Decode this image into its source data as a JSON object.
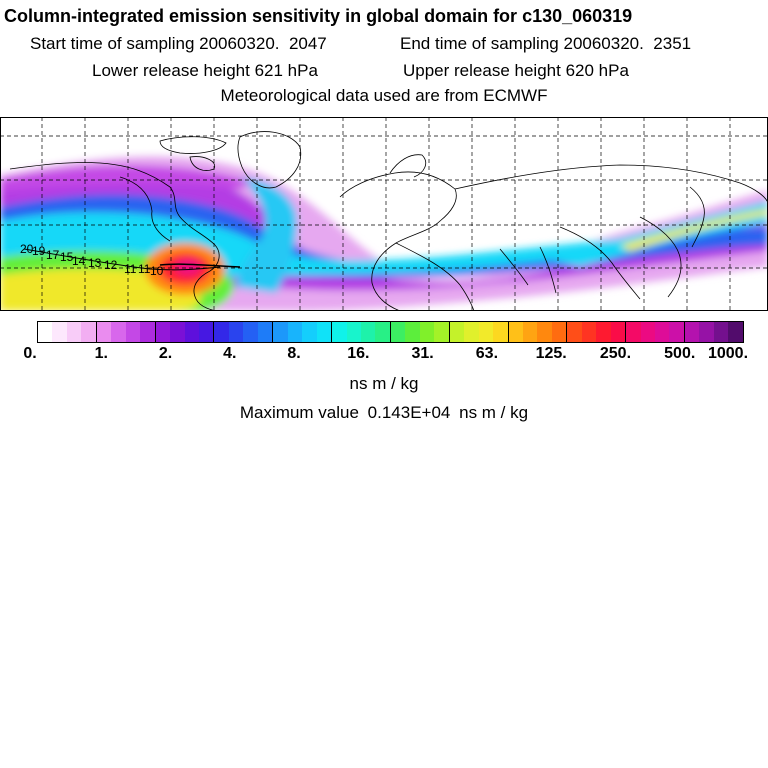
{
  "header": {
    "title": "Column-integrated emission sensitivity in global domain for c130_060319",
    "start_label": "Start time of sampling",
    "start_value": "20060320.  2047",
    "end_label": "End time of sampling",
    "end_value": "20060320.  2351",
    "lower_label": "Lower release height",
    "lower_value": "621 hPa",
    "upper_label": "Upper release height",
    "upper_value": "620 hPa",
    "met_text": "Meteorological data used are from ECMWF"
  },
  "map": {
    "track_labels": [
      "20",
      "19",
      "17",
      "15",
      "14",
      "13",
      "12",
      "11",
      "11",
      "10"
    ]
  },
  "colorbar": {
    "ticks": [
      "0.",
      "1.",
      "2.",
      "4.",
      "8.",
      "16.",
      "31.",
      "63.",
      "125.",
      "250.",
      "500.",
      "1000."
    ],
    "colors": [
      "#ffffff",
      "#fde8fd",
      "#f8ccf8",
      "#f2aef2",
      "#ea8cef",
      "#d867ec",
      "#c448e6",
      "#ad2cde",
      "#9418d8",
      "#7b10d6",
      "#5e10dc",
      "#4618e2",
      "#3328e8",
      "#2a44ee",
      "#2460f4",
      "#1e7cf8",
      "#1c98fa",
      "#18b4fc",
      "#14cefc",
      "#10e2f8",
      "#10f2ea",
      "#18f4cc",
      "#1ef2aa",
      "#28f086",
      "#3cee62",
      "#5cee3c",
      "#80f02a",
      "#a4f228",
      "#c4f22a",
      "#e0f02c",
      "#f2ea2a",
      "#fcd820",
      "#ffc018",
      "#ffa412",
      "#ff880e",
      "#ff6c10",
      "#ff4e18",
      "#ff3422",
      "#fe1a30",
      "#fa0c48",
      "#f40a66",
      "#ec0a82",
      "#de0c98",
      "#cc10a8",
      "#b412ae",
      "#9612a6",
      "#74108e",
      "#520c6c"
    ],
    "unit": "ns m / kg"
  },
  "maximum": {
    "label": "Maximum value",
    "value": "0.143E+04",
    "unit": "ns m / kg"
  }
}
